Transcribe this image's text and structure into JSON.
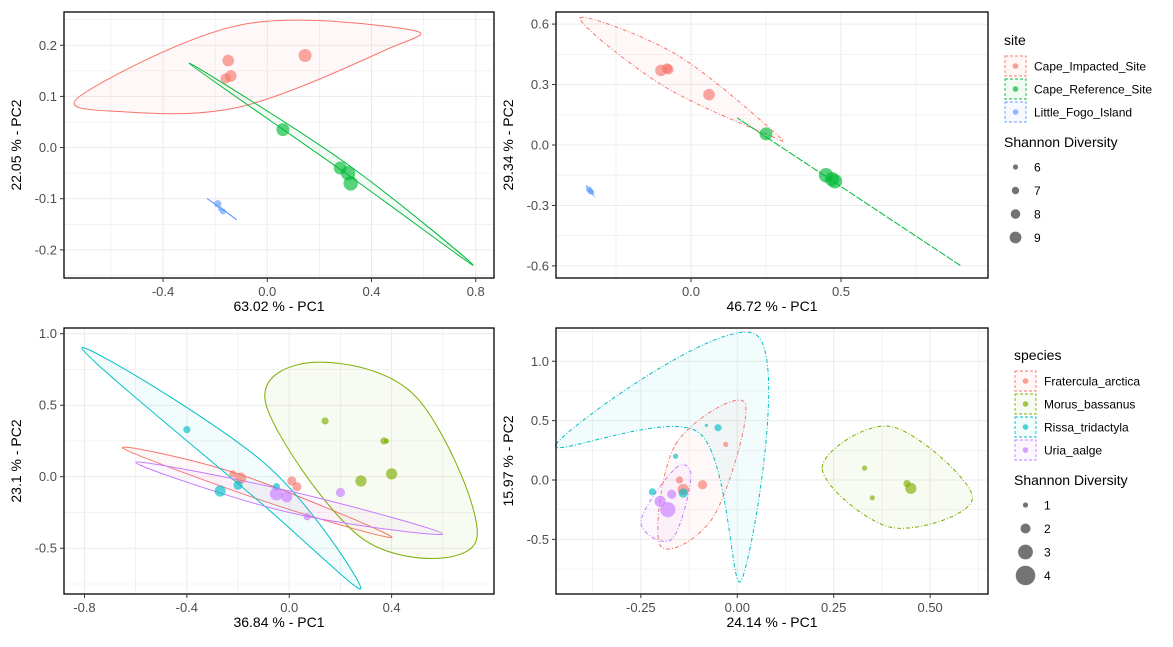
{
  "chart_data": [
    {
      "type": "scatter",
      "xlabel": "63.02 % - PC1",
      "ylabel": "22.05 % - PC2",
      "xlim": [
        -0.78,
        0.87
      ],
      "ylim": [
        -0.255,
        0.265
      ],
      "xticks": [
        -0.4,
        0.0,
        0.4,
        0.8
      ],
      "xtick_labels": [
        "-0.4",
        "0.0",
        "0.4",
        "0.8"
      ],
      "yticks": [
        -0.2,
        -0.1,
        0.0,
        0.1,
        0.2
      ],
      "ytick_labels": [
        "-0.2",
        "-0.1",
        "0.0",
        "0.1",
        "0.2"
      ],
      "grid": true,
      "ellipse_style": "solid",
      "series": [
        {
          "group": "Cape_Impacted_Site",
          "color": "#F8766D",
          "points": [
            {
              "x": -0.15,
              "y": 0.17,
              "size": 8
            },
            {
              "x": -0.14,
              "y": 0.14,
              "size": 8
            },
            {
              "x": -0.16,
              "y": 0.135,
              "size": 7.5
            },
            {
              "x": 0.145,
              "y": 0.18,
              "size": 8.5
            }
          ],
          "ellipse": [
            {
              "x": -0.72,
              "y": 0.1
            },
            {
              "x": -0.1,
              "y": 0.24
            },
            {
              "x": 0.55,
              "y": 0.23
            },
            {
              "x": 0.45,
              "y": 0.19
            },
            {
              "x": -0.1,
              "y": 0.08
            },
            {
              "x": -0.55,
              "y": 0.07
            }
          ]
        },
        {
          "group": "Cape_Reference_Site",
          "color": "#00BA38",
          "points": [
            {
              "x": 0.06,
              "y": 0.035,
              "size": 8.5
            },
            {
              "x": 0.28,
              "y": -0.04,
              "size": 8.5
            },
            {
              "x": 0.31,
              "y": -0.05,
              "size": 9
            },
            {
              "x": 0.32,
              "y": -0.07,
              "size": 9
            }
          ],
          "ellipse": [
            {
              "x": -0.3,
              "y": 0.165
            },
            {
              "x": 0.3,
              "y": -0.05
            },
            {
              "x": 0.79,
              "y": -0.23
            },
            {
              "x": 0.3,
              "y": -0.03
            }
          ]
        },
        {
          "group": "Little_Fogo_Island",
          "color": "#619CFF",
          "points": [
            {
              "x": -0.19,
              "y": -0.11,
              "size": 6.5
            },
            {
              "x": -0.17,
              "y": -0.125,
              "size": 6
            },
            {
              "x": -0.18,
              "y": -0.12,
              "size": 5.5
            }
          ],
          "ellipse": [
            {
              "x": -0.23,
              "y": -0.1
            },
            {
              "x": -0.12,
              "y": -0.14
            },
            {
              "x": -0.16,
              "y": -0.125
            }
          ]
        }
      ]
    },
    {
      "type": "scatter",
      "xlabel": "46.72 % - PC1",
      "ylabel": "29.34 % - PC2",
      "xlim": [
        -0.45,
        0.99
      ],
      "ylim": [
        -0.66,
        0.66
      ],
      "xticks": [
        0.0,
        0.5
      ],
      "xtick_labels": [
        "0.0",
        "0.5"
      ],
      "yticks": [
        -0.6,
        -0.3,
        0.0,
        0.3,
        0.6
      ],
      "ytick_labels": [
        "-0.6",
        "-0.3",
        "0.0",
        "0.3",
        "0.6"
      ],
      "grid": true,
      "ellipse_style": "dashed",
      "series": [
        {
          "group": "Cape_Impacted_Site",
          "color": "#F8766D",
          "points": [
            {
              "x": -0.1,
              "y": 0.37,
              "size": 8
            },
            {
              "x": -0.08,
              "y": 0.38,
              "size": 7.5
            },
            {
              "x": -0.075,
              "y": 0.375,
              "size": 7.5
            },
            {
              "x": 0.06,
              "y": 0.25,
              "size": 8
            }
          ],
          "ellipse": [
            {
              "x": -0.37,
              "y": 0.63
            },
            {
              "x": -0.05,
              "y": 0.45
            },
            {
              "x": 0.28,
              "y": 0.06
            },
            {
              "x": 0.25,
              "y": 0.055
            },
            {
              "x": -0.1,
              "y": 0.3
            }
          ]
        },
        {
          "group": "Cape_Reference_Site",
          "color": "#00BA38",
          "points": [
            {
              "x": 0.25,
              "y": 0.055,
              "size": 8.5
            },
            {
              "x": 0.45,
              "y": -0.15,
              "size": 9
            },
            {
              "x": 0.47,
              "y": -0.17,
              "size": 9
            },
            {
              "x": 0.48,
              "y": -0.18,
              "size": 9
            }
          ],
          "ellipse": [
            {
              "x": 0.26,
              "y": 0.03
            },
            {
              "x": 0.9,
              "y": -0.6
            },
            {
              "x": 0.22,
              "y": 0.07
            }
          ]
        },
        {
          "group": "Little_Fogo_Island",
          "color": "#619CFF",
          "points": [
            {
              "x": -0.34,
              "y": -0.22,
              "size": 6
            },
            {
              "x": -0.335,
              "y": -0.23,
              "size": 6
            },
            {
              "x": -0.33,
              "y": -0.235,
              "size": 5.5
            }
          ],
          "ellipse": [
            {
              "x": -0.35,
              "y": -0.2
            },
            {
              "x": -0.32,
              "y": -0.26
            }
          ]
        }
      ]
    },
    {
      "type": "scatter",
      "xlabel": "36.84 % - PC1",
      "ylabel": "23.1 % - PC2",
      "xlim": [
        -0.88,
        0.8
      ],
      "ylim": [
        -0.82,
        1.04
      ],
      "xticks": [
        -0.8,
        -0.4,
        0.0,
        0.4
      ],
      "xtick_labels": [
        "-0.8",
        "-0.4",
        "0.0",
        "0.4"
      ],
      "yticks": [
        -0.5,
        0.0,
        0.5,
        1.0
      ],
      "ytick_labels": [
        "-0.5",
        "0.0",
        "0.5",
        "1.0"
      ],
      "grid": true,
      "ellipse_style": "solid",
      "series": [
        {
          "group": "Fratercula_arctica",
          "color": "#F8766D",
          "points": [
            {
              "x": -0.22,
              "y": 0.02,
              "size": 2
            },
            {
              "x": -0.19,
              "y": -0.01,
              "size": 3
            },
            {
              "x": 0.01,
              "y": -0.03,
              "size": 2.5
            },
            {
              "x": 0.03,
              "y": -0.07,
              "size": 2.5
            }
          ],
          "ellipse": [
            {
              "x": -0.65,
              "y": 0.2
            },
            {
              "x": -0.2,
              "y": 0.02
            },
            {
              "x": 0.4,
              "y": -0.42
            },
            {
              "x": -0.05,
              "y": -0.2
            }
          ]
        },
        {
          "group": "Morus_bassanus",
          "color": "#7CAE00",
          "points": [
            {
              "x": 0.14,
              "y": 0.39,
              "size": 2
            },
            {
              "x": 0.37,
              "y": 0.25,
              "size": 2
            },
            {
              "x": 0.38,
              "y": 0.25,
              "size": 1.5
            },
            {
              "x": 0.28,
              "y": -0.03,
              "size": 3
            },
            {
              "x": 0.4,
              "y": 0.02,
              "size": 3
            }
          ],
          "ellipse": [
            {
              "x": 0.1,
              "y": 0.8
            },
            {
              "x": 0.5,
              "y": 0.55
            },
            {
              "x": 0.73,
              "y": -0.45
            },
            {
              "x": 0.3,
              "y": -0.45
            },
            {
              "x": -0.09,
              "y": 0.5
            }
          ]
        },
        {
          "group": "Rissa_tridactyla",
          "color": "#00BFC4",
          "points": [
            {
              "x": -0.4,
              "y": 0.33,
              "size": 2
            },
            {
              "x": -0.27,
              "y": -0.1,
              "size": 3
            },
            {
              "x": -0.2,
              "y": -0.06,
              "size": 2.5
            },
            {
              "x": -0.05,
              "y": -0.07,
              "size": 2
            }
          ],
          "ellipse": [
            {
              "x": -0.81,
              "y": 0.9
            },
            {
              "x": -0.1,
              "y": 0.1
            },
            {
              "x": 0.28,
              "y": -0.78
            },
            {
              "x": -0.1,
              "y": -0.2
            }
          ]
        },
        {
          "group": "Uria_aalge",
          "color": "#C77CFF",
          "points": [
            {
              "x": -0.05,
              "y": -0.12,
              "size": 3.5
            },
            {
              "x": -0.01,
              "y": -0.14,
              "size": 3
            },
            {
              "x": 0.07,
              "y": -0.28,
              "size": 2
            },
            {
              "x": 0.2,
              "y": -0.11,
              "size": 2.5
            }
          ],
          "ellipse": [
            {
              "x": -0.6,
              "y": 0.1
            },
            {
              "x": 0.0,
              "y": -0.1
            },
            {
              "x": 0.6,
              "y": -0.4
            },
            {
              "x": 0.0,
              "y": -0.25
            }
          ]
        }
      ]
    },
    {
      "type": "scatter",
      "xlabel": "24.14 % - PC1",
      "ylabel": "15.97 % - PC2",
      "xlim": [
        -0.47,
        0.65
      ],
      "ylim": [
        -0.96,
        1.28
      ],
      "xticks": [
        -0.25,
        0.0,
        0.25,
        0.5
      ],
      "xtick_labels": [
        "-0.25",
        "0.00",
        "0.25",
        "0.50"
      ],
      "yticks": [
        -0.5,
        0.0,
        0.5,
        1.0
      ],
      "ytick_labels": [
        "-0.5",
        "0.0",
        "0.5",
        "1.0"
      ],
      "grid": true,
      "ellipse_style": "dashed",
      "series": [
        {
          "group": "Fratercula_arctica",
          "color": "#F8766D",
          "points": [
            {
              "x": -0.15,
              "y": 0.0,
              "size": 2
            },
            {
              "x": -0.14,
              "y": -0.08,
              "size": 3
            },
            {
              "x": -0.09,
              "y": -0.04,
              "size": 2.5
            },
            {
              "x": -0.03,
              "y": 0.3,
              "size": 1.5
            }
          ],
          "ellipse": [
            {
              "x": -0.16,
              "y": 0.3
            },
            {
              "x": 0.02,
              "y": 0.65
            },
            {
              "x": -0.06,
              "y": -0.3
            },
            {
              "x": -0.2,
              "y": -0.55
            }
          ]
        },
        {
          "group": "Morus_bassanus",
          "color": "#7CAE00",
          "points": [
            {
              "x": 0.33,
              "y": 0.1,
              "size": 1.5
            },
            {
              "x": 0.35,
              "y": -0.15,
              "size": 1.5
            },
            {
              "x": 0.44,
              "y": -0.03,
              "size": 2
            },
            {
              "x": 0.45,
              "y": -0.07,
              "size": 3
            }
          ],
          "ellipse": [
            {
              "x": 0.22,
              "y": 0.1
            },
            {
              "x": 0.4,
              "y": 0.45
            },
            {
              "x": 0.61,
              "y": -0.15
            },
            {
              "x": 0.4,
              "y": -0.4
            }
          ]
        },
        {
          "group": "Rissa_tridactyla",
          "color": "#00BFC4",
          "points": [
            {
              "x": -0.16,
              "y": 0.2,
              "size": 1.5
            },
            {
              "x": -0.22,
              "y": -0.1,
              "size": 2
            },
            {
              "x": -0.14,
              "y": -0.11,
              "size": 2.5
            },
            {
              "x": -0.05,
              "y": 0.44,
              "size": 2
            },
            {
              "x": -0.08,
              "y": 0.46,
              "size": 1
            }
          ],
          "ellipse": [
            {
              "x": -0.47,
              "y": 0.3
            },
            {
              "x": 0.05,
              "y": 1.22
            },
            {
              "x": 0.01,
              "y": -0.85
            },
            {
              "x": -0.1,
              "y": 0.4
            }
          ]
        },
        {
          "group": "Uria_aalge",
          "color": "#C77CFF",
          "points": [
            {
              "x": -0.2,
              "y": -0.18,
              "size": 3
            },
            {
              "x": -0.18,
              "y": -0.25,
              "size": 4
            },
            {
              "x": -0.17,
              "y": -0.12,
              "size": 2.5
            }
          ],
          "ellipse": [
            {
              "x": -0.16,
              "y": 0.1
            },
            {
              "x": -0.12,
              "y": 0.02
            },
            {
              "x": -0.17,
              "y": -0.5
            },
            {
              "x": -0.25,
              "y": -0.35
            }
          ]
        }
      ]
    }
  ],
  "legends": [
    {
      "title": "site",
      "entries": [
        {
          "label": "Cape_Impacted_Site",
          "color": "#F8766D"
        },
        {
          "label": "Cape_Reference_Site",
          "color": "#00BA38"
        },
        {
          "label": "Little_Fogo_Island",
          "color": "#619CFF"
        }
      ],
      "size_title": "Shannon Diversity",
      "size_entries": [
        {
          "label": "6",
          "value": 6
        },
        {
          "label": "7",
          "value": 7
        },
        {
          "label": "8",
          "value": 8
        },
        {
          "label": "9",
          "value": 9
        }
      ]
    },
    {
      "title": "species",
      "entries": [
        {
          "label": "Fratercula_arctica",
          "color": "#F8766D"
        },
        {
          "label": "Morus_bassanus",
          "color": "#7CAE00"
        },
        {
          "label": "Rissa_tridactyla",
          "color": "#00BFC4"
        },
        {
          "label": "Uria_aalge",
          "color": "#C77CFF"
        }
      ],
      "size_title": "Shannon Diversity",
      "size_entries": [
        {
          "label": "1",
          "value": 1
        },
        {
          "label": "2",
          "value": 2
        },
        {
          "label": "3",
          "value": 3
        },
        {
          "label": "4",
          "value": 4
        }
      ]
    }
  ]
}
